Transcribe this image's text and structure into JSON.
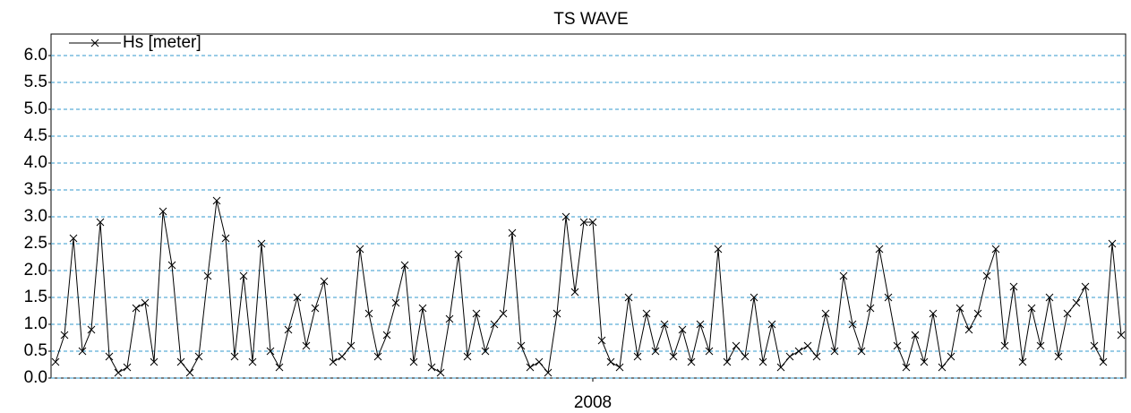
{
  "chart_data": {
    "type": "line",
    "title": "TS WAVE",
    "categories": [
      null,
      null,
      null,
      null,
      null,
      null,
      null,
      null,
      null,
      null,
      null,
      null,
      null,
      null,
      null,
      null,
      null,
      null,
      null,
      null,
      null,
      null,
      null,
      null,
      null,
      null,
      null,
      null,
      null,
      null,
      null,
      null,
      null,
      null,
      null,
      null,
      null,
      null,
      null,
      null,
      null,
      null,
      null,
      null,
      null,
      null,
      null,
      null,
      null,
      null,
      null,
      null,
      null,
      null,
      null,
      null,
      null,
      null,
      null,
      null,
      "2008",
      null,
      null,
      null,
      null,
      null,
      null,
      null,
      null,
      null,
      null,
      null,
      null,
      null,
      null,
      null,
      null,
      null,
      null,
      null,
      null,
      null,
      null,
      null,
      null,
      null,
      null,
      null,
      null,
      null,
      null,
      null,
      null,
      null,
      null,
      null,
      null,
      null,
      null,
      null,
      null,
      null,
      null,
      null,
      null,
      null,
      null,
      null,
      null,
      null,
      null,
      null,
      null,
      null,
      null,
      null,
      null,
      null,
      null,
      null
    ],
    "series": [
      {
        "name": "Hs [meter]",
        "color": "#000000",
        "values": [
          0.3,
          0.8,
          2.6,
          0.5,
          0.9,
          2.9,
          0.4,
          0.1,
          0.2,
          1.3,
          1.4,
          0.3,
          3.1,
          2.1,
          0.3,
          0.1,
          0.4,
          1.9,
          3.3,
          2.6,
          0.4,
          1.9,
          0.3,
          2.5,
          0.5,
          0.2,
          0.9,
          1.5,
          0.6,
          1.3,
          1.8,
          0.3,
          0.4,
          0.6,
          2.4,
          1.2,
          0.4,
          0.8,
          1.4,
          2.1,
          0.3,
          1.3,
          0.2,
          0.1,
          1.1,
          2.3,
          0.4,
          1.2,
          0.5,
          1.0,
          1.2,
          2.7,
          0.6,
          0.2,
          0.3,
          0.1,
          1.2,
          3.0,
          1.6,
          2.9,
          2.9,
          0.7,
          0.3,
          0.2,
          1.5,
          0.4,
          1.2,
          0.5,
          1.0,
          0.4,
          0.9,
          0.3,
          1.0,
          0.5,
          2.4,
          0.3,
          0.6,
          0.4,
          1.5,
          0.3,
          1.0,
          0.2,
          0.4,
          0.5,
          0.6,
          0.4,
          1.2,
          0.5,
          1.9,
          1.0,
          0.5,
          1.3,
          2.4,
          1.5,
          0.6,
          0.2,
          0.8,
          0.3,
          1.2,
          0.2,
          0.4,
          1.3,
          0.9,
          1.2,
          1.9,
          2.4,
          0.6,
          1.7,
          0.3,
          1.3,
          0.6,
          1.5,
          0.4,
          1.2,
          1.4,
          1.7,
          0.6,
          0.3,
          2.5,
          0.8
        ]
      }
    ],
    "ylim": [
      0,
      6.4
    ],
    "yticks": [
      {
        "value": 0,
        "label": "0.0"
      },
      {
        "value": 0.5,
        "label": "0.5"
      },
      {
        "value": 1,
        "label": "1.0"
      },
      {
        "value": 1.5,
        "label": "1.5"
      },
      {
        "value": 2,
        "label": "2.0"
      },
      {
        "value": 2.5,
        "label": "2.5"
      },
      {
        "value": 3,
        "label": "3.0"
      },
      {
        "value": 3.5,
        "label": "3.5"
      },
      {
        "value": 4,
        "label": "4.0"
      },
      {
        "value": 4.5,
        "label": "4.5"
      },
      {
        "value": 5,
        "label": "5.0"
      },
      {
        "value": 5.5,
        "label": "5.5"
      },
      {
        "value": 6,
        "label": "6.0"
      }
    ],
    "grid": true,
    "grid_color": "#3399cc",
    "legend": "upper left"
  }
}
